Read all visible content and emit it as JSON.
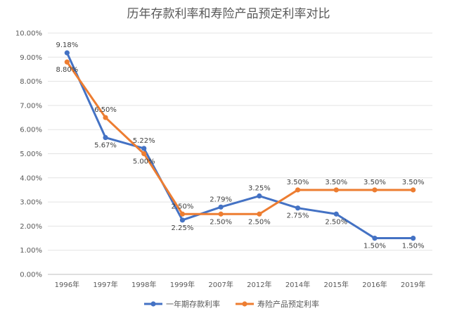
{
  "chart_data": {
    "type": "line",
    "title": "历年存款利率和寿险产品预定利率对比",
    "categories": [
      "1996年",
      "1997年",
      "1998年",
      "1999年",
      "2007年",
      "2012年",
      "2014年",
      "2015年",
      "2016年",
      "2019年"
    ],
    "y_tick_labels": [
      "0.00%",
      "1.00%",
      "2.00%",
      "3.00%",
      "4.00%",
      "5.00%",
      "6.00%",
      "7.00%",
      "8.00%",
      "9.00%",
      "10.00%"
    ],
    "ylim": [
      0,
      10
    ],
    "grid": true,
    "legend_position": "bottom",
    "series": [
      {
        "name": "一年期存款利率",
        "color": "#4472c4",
        "values": [
          9.18,
          5.67,
          5.22,
          2.25,
          2.79,
          3.25,
          2.75,
          2.5,
          1.5,
          1.5
        ],
        "labels": [
          "9.18%",
          "5.67%",
          "5.22%",
          "2.25%",
          "2.79%",
          "3.25%",
          "2.75%",
          "2.50%",
          "1.50%",
          "1.50%"
        ]
      },
      {
        "name": "寿险产品预定利率",
        "color": "#ed7d31",
        "values": [
          8.8,
          6.5,
          5.0,
          2.5,
          2.5,
          2.5,
          3.5,
          3.5,
          3.5,
          3.5
        ],
        "labels": [
          "8.80%",
          "6.50%",
          "5.00%",
          "2.50%",
          "2.50%",
          "2.50%",
          "3.50%",
          "3.50%",
          "3.50%",
          "3.50%"
        ]
      }
    ]
  }
}
